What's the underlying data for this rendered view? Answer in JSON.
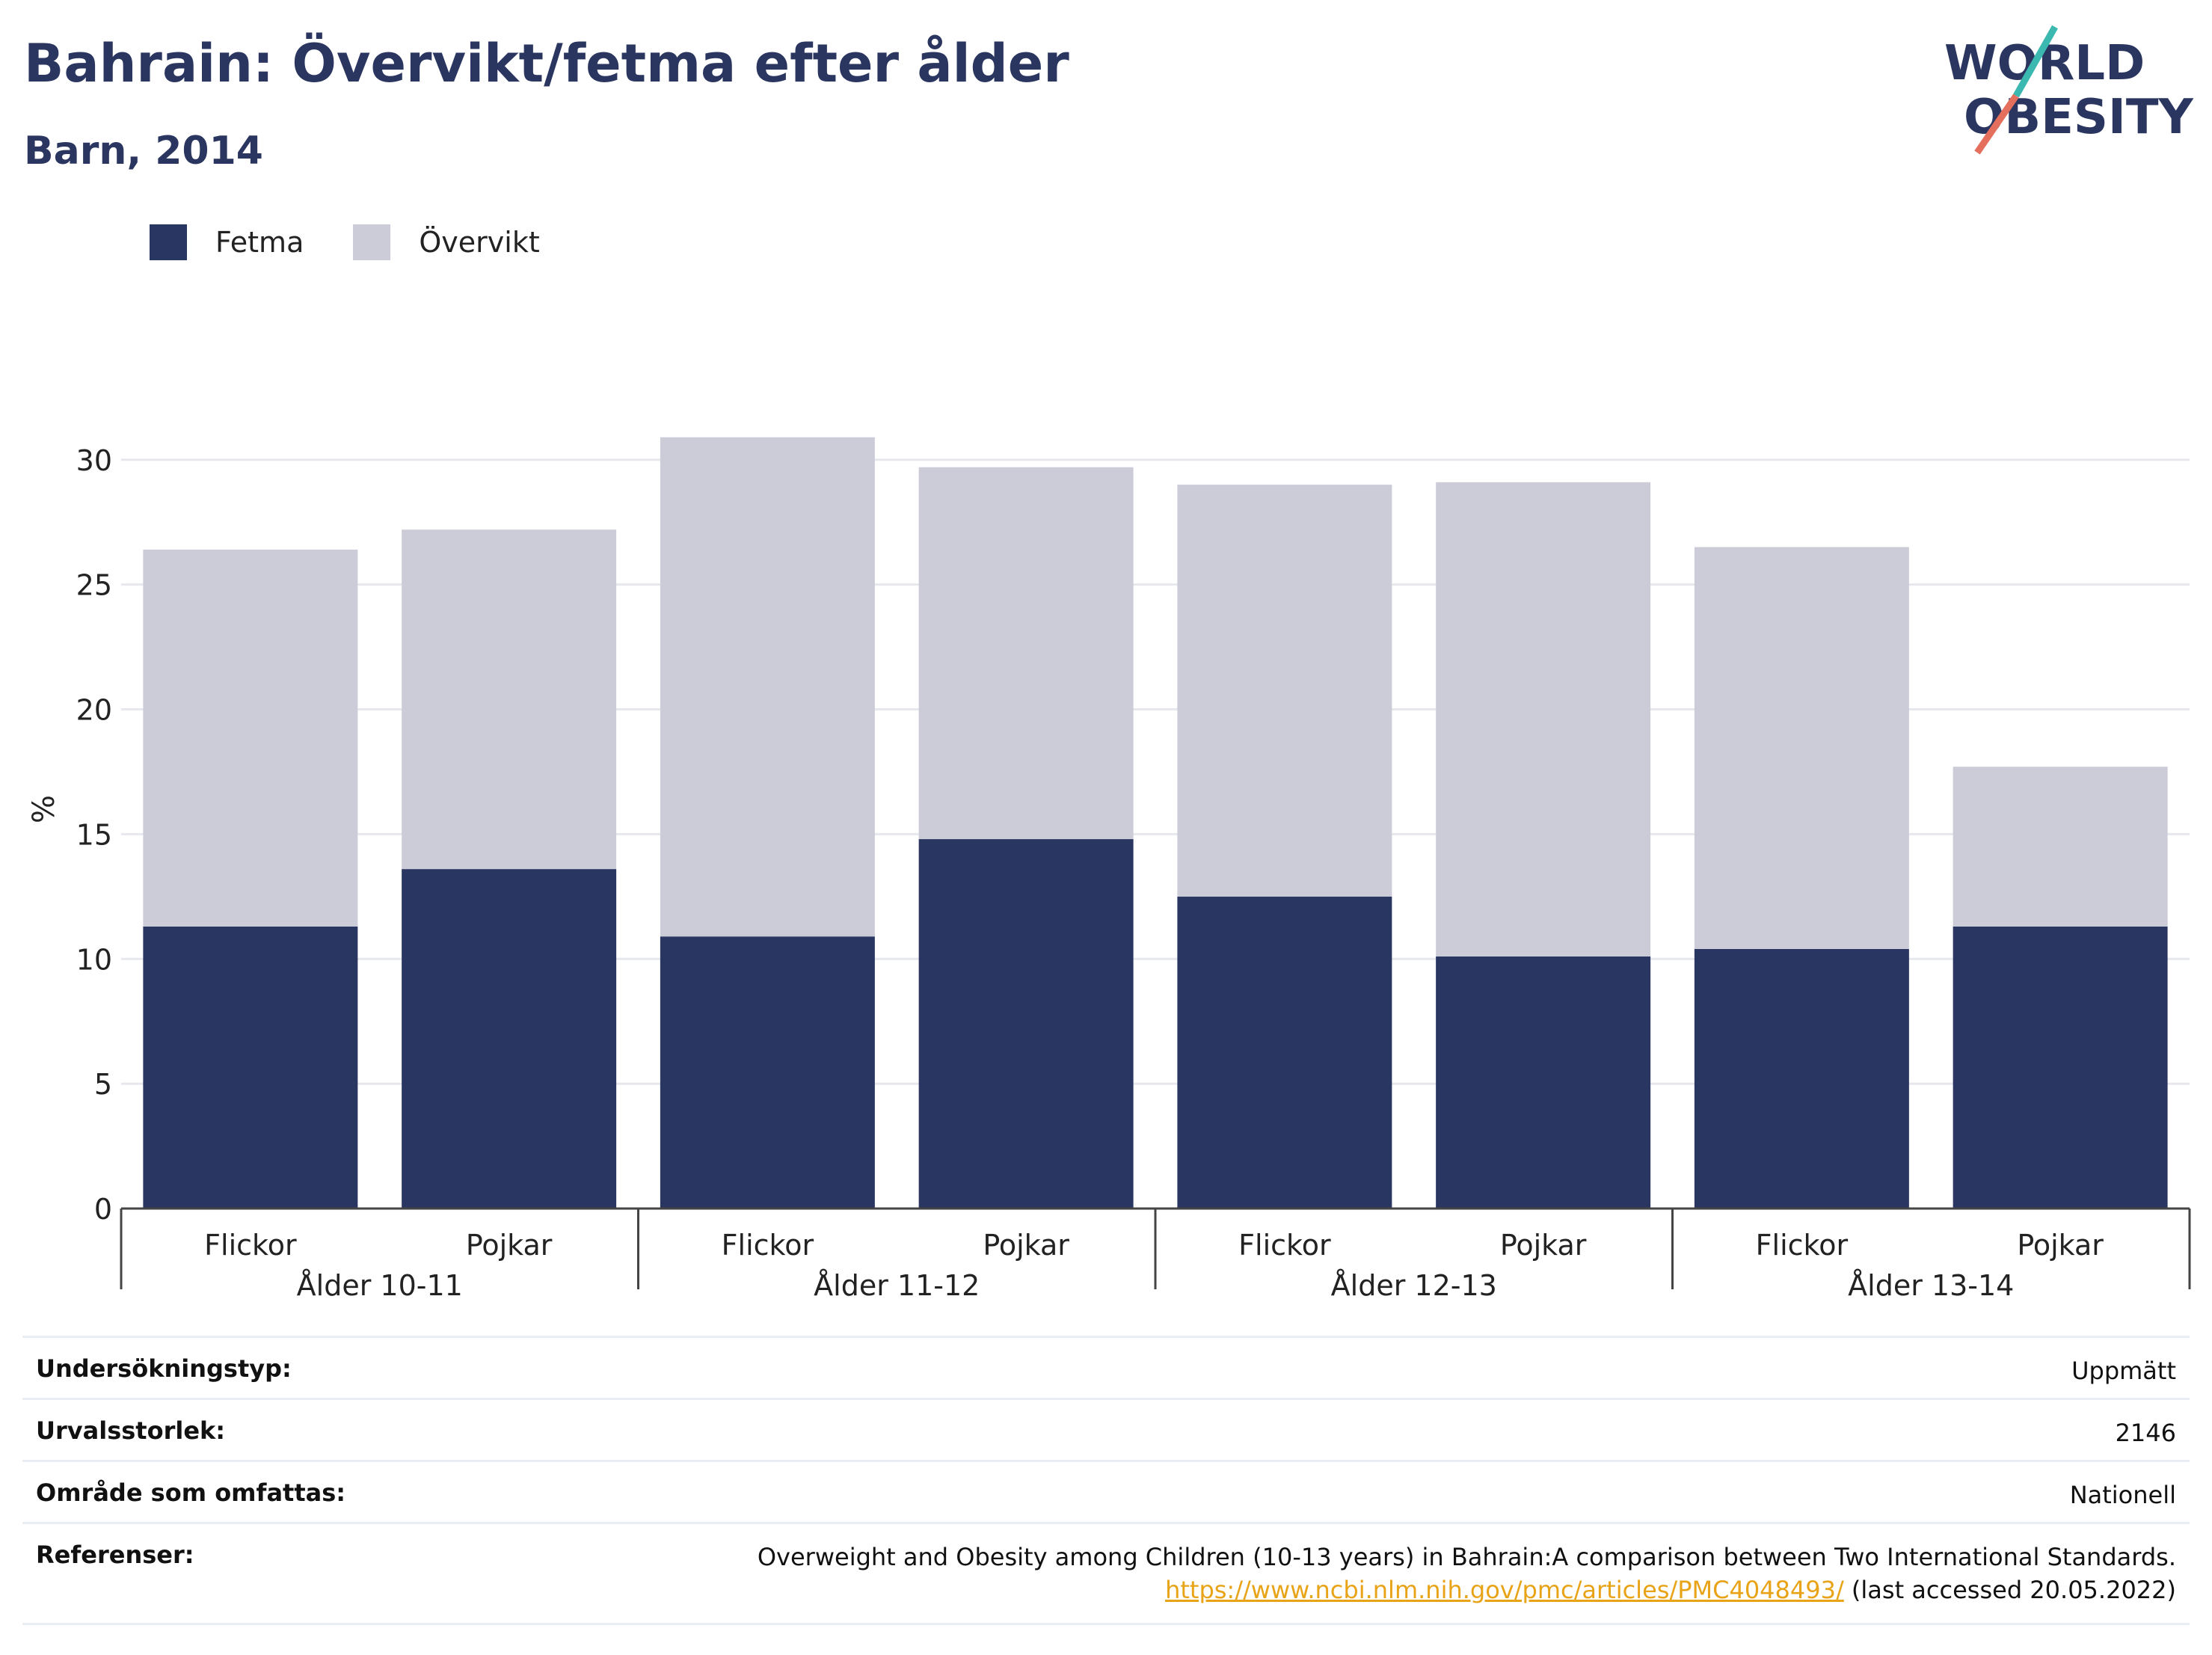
{
  "header": {
    "title": "Bahrain: Övervikt/fetma efter ålder",
    "subtitle": "Barn, 2014"
  },
  "logo": {
    "line1": "WORLD",
    "line2": "OBESITY"
  },
  "colors": {
    "fetma": "#2a3662",
    "overvikt": "#cbccd8",
    "text": "#2a365f",
    "link": "#e8a317"
  },
  "chart_data": {
    "type": "bar",
    "stacked": true,
    "ylabel": "%",
    "ylim": [
      0,
      32
    ],
    "yticks": [
      0,
      5,
      10,
      15,
      20,
      25,
      30
    ],
    "grid": true,
    "legend_position": "top-left",
    "groups": [
      "Ålder 10-11",
      "Ålder 11-12",
      "Ålder 12-13",
      "Ålder 13-14"
    ],
    "categories": [
      "Flickor",
      "Pojkar",
      "Flickor",
      "Pojkar",
      "Flickor",
      "Pojkar",
      "Flickor",
      "Pojkar"
    ],
    "series": [
      {
        "name": "Fetma",
        "values": [
          11.3,
          13.6,
          10.9,
          14.8,
          12.5,
          10.1,
          10.4,
          11.3
        ]
      },
      {
        "name": "Övervikt",
        "values": [
          15.1,
          13.6,
          20.0,
          14.9,
          16.5,
          19.0,
          16.1,
          6.4
        ]
      }
    ]
  },
  "info": {
    "survey_type_label": "Undersökningstyp:",
    "survey_type_value": "Uppmätt",
    "sample_size_label": "Urvalsstorlek:",
    "sample_size_value": "2146",
    "area_label": "Område som omfattas:",
    "area_value": "Nationell",
    "references_label": "Referenser:",
    "reference_text": "Overweight and Obesity among Children (10-13 years) in Bahrain:A comparison between Two International Standards.",
    "reference_link": "https://www.ncbi.nlm.nih.gov/pmc/articles/PMC4048493/",
    "reference_suffix": " (last accessed 20.05.2022)"
  }
}
